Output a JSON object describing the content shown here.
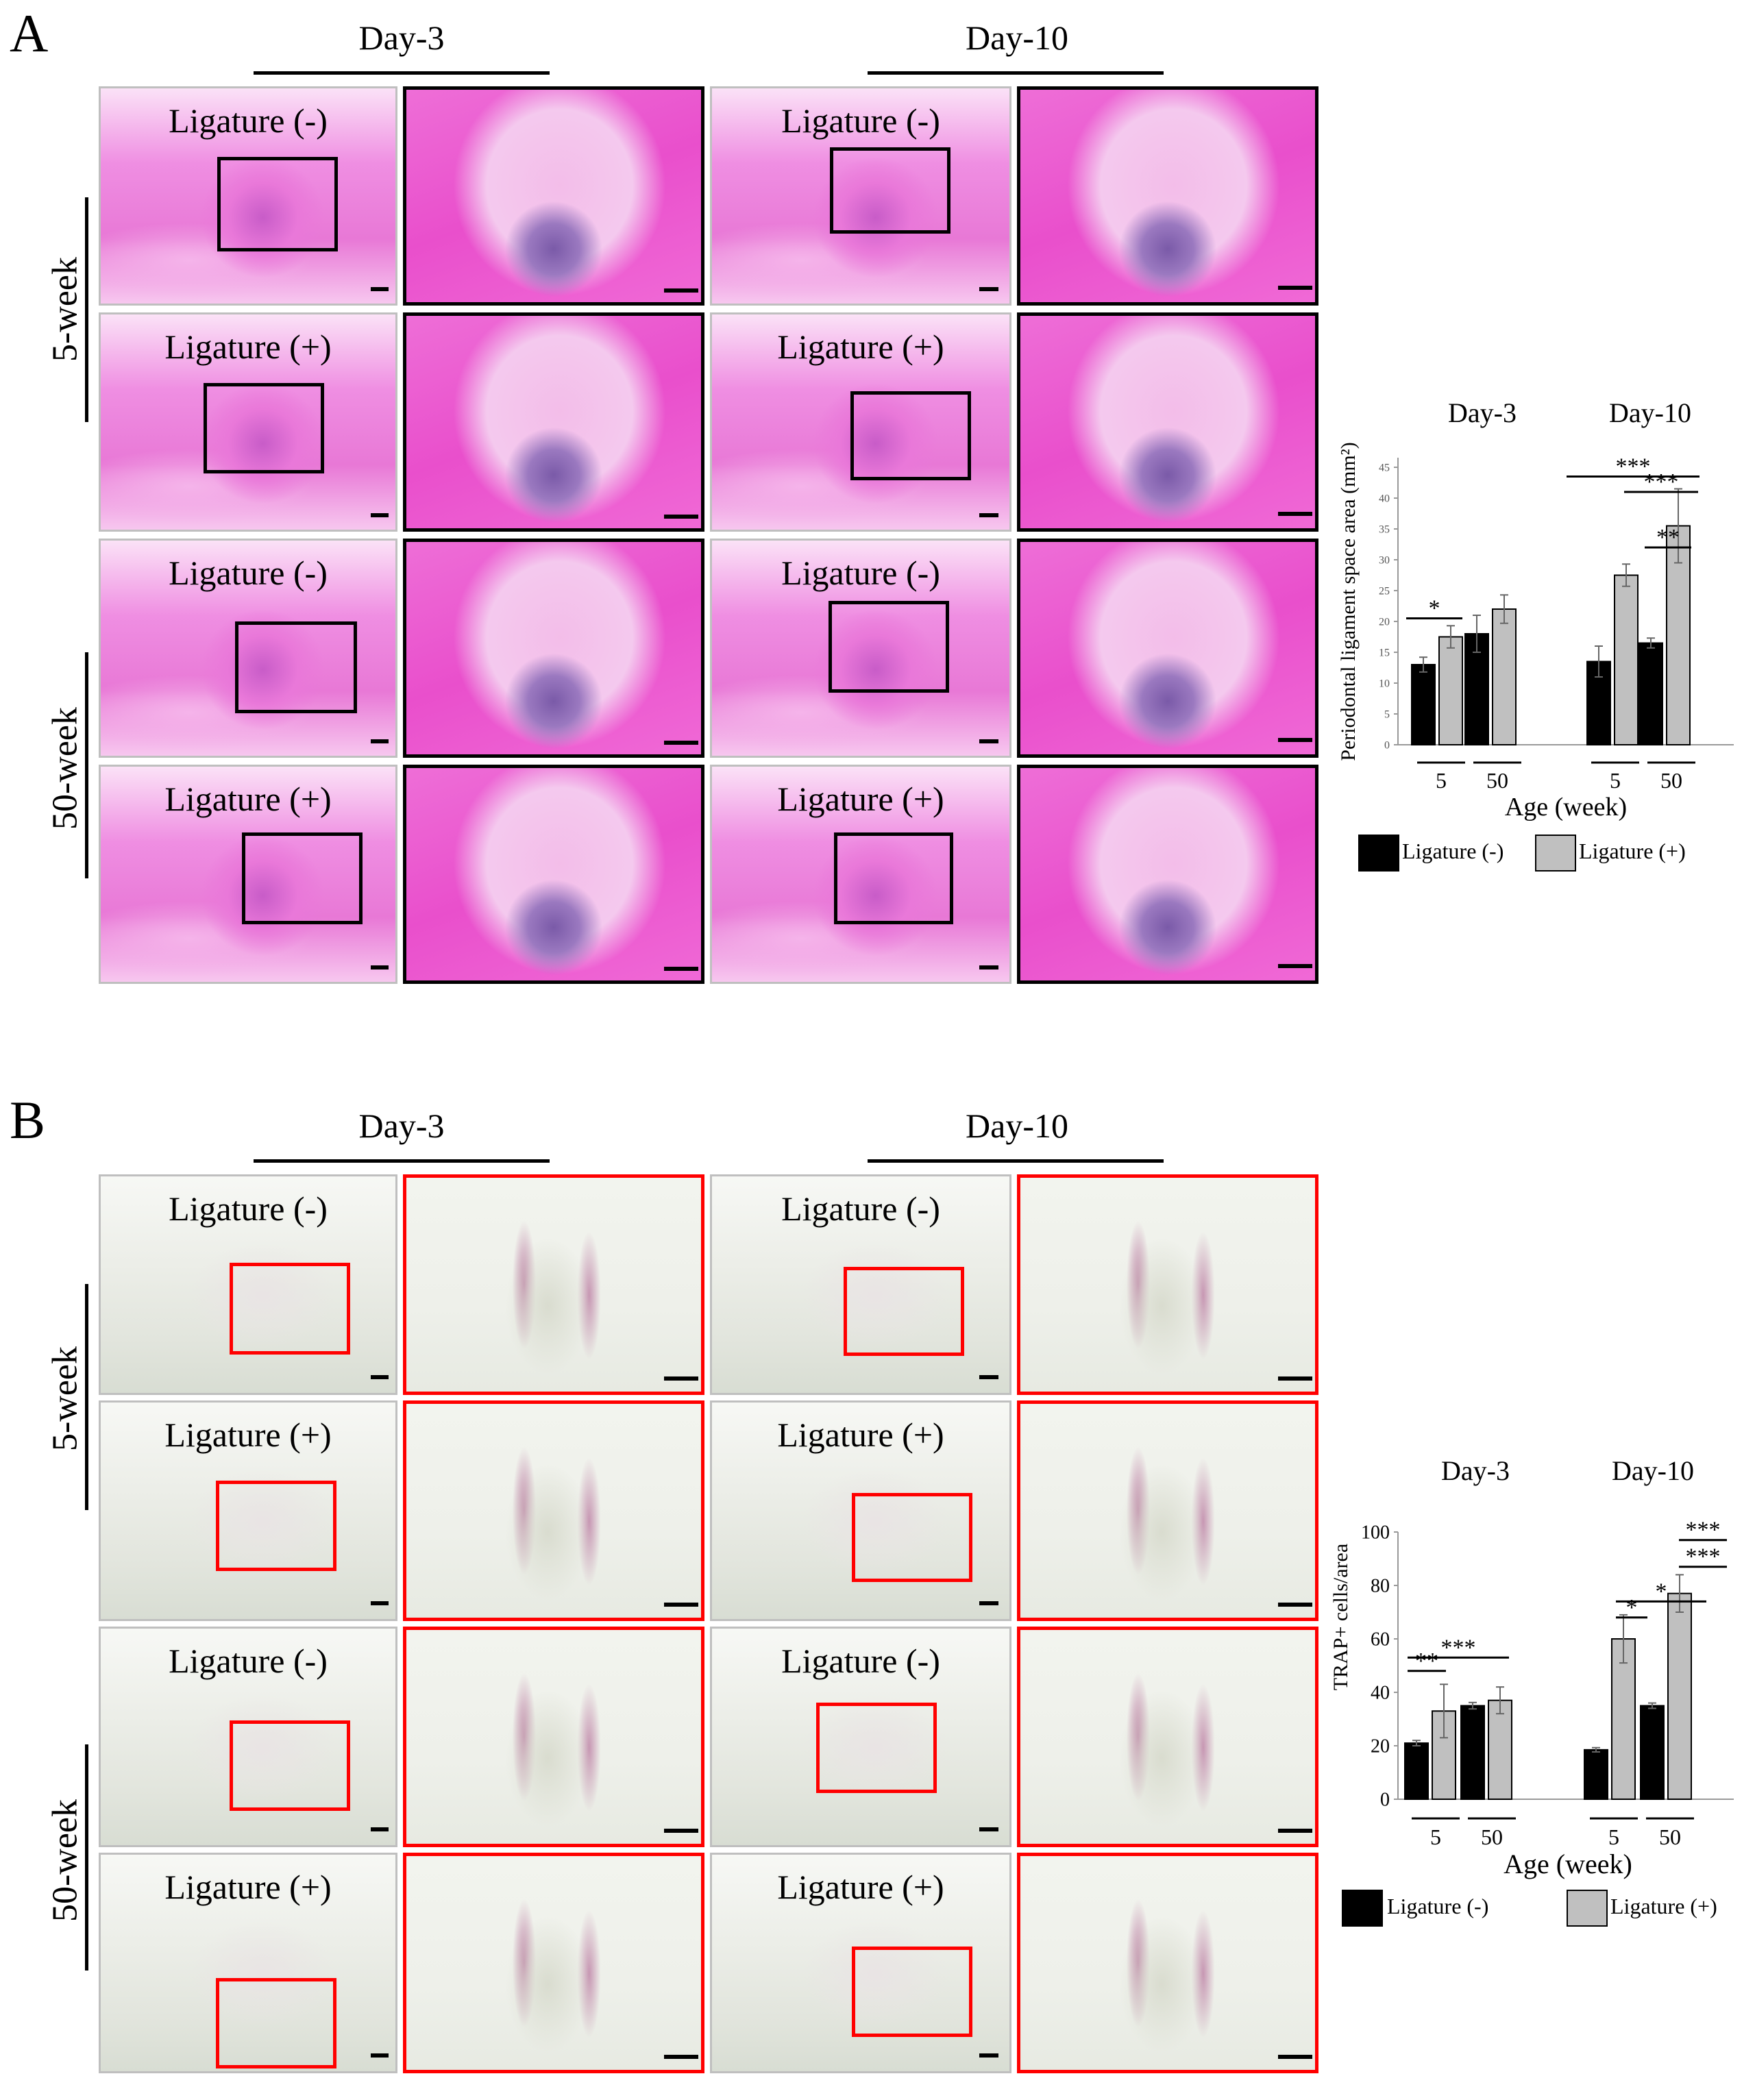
{
  "panelA": {
    "letter": "A",
    "day_headers": [
      "Day-3",
      "Day-10"
    ],
    "week_labels": [
      "5-week",
      "50-week"
    ],
    "tile_labels": [
      "Ligature (-)",
      "Ligature (+)",
      "Ligature (-)",
      "Ligature (+)"
    ]
  },
  "panelB": {
    "letter": "B",
    "day_headers": [
      "Day-3",
      "Day-10"
    ],
    "week_labels": [
      "5-week",
      "50-week"
    ],
    "tile_labels": [
      "Ligature (-)",
      "Ligature (+)",
      "Ligature (-)",
      "Ligature (+)"
    ]
  },
  "legend": {
    "neg": "Ligature (-)",
    "pos": "Ligature (+)"
  },
  "colors": {
    "neg_bar": "#000000",
    "pos_bar": "#c0c0c0",
    "zoomA_border": "#000000",
    "zoomB_border": "#ff0000",
    "he_pink": "#e94fcc"
  },
  "chart_data": [
    {
      "type": "bar",
      "title": "",
      "groups": [
        "Day-3",
        "Day-10"
      ],
      "categories": [
        "5",
        "50"
      ],
      "xlabel": "Age (week)",
      "ylabel": "Periodontal ligament space area (mm²)",
      "ylim": [
        0,
        45
      ],
      "yticks": [
        0,
        5,
        10,
        15,
        20,
        25,
        30,
        35,
        40,
        45
      ],
      "series": [
        {
          "name": "Ligature (-)",
          "values": [
            [
              13,
              18
            ],
            [
              13.5,
              16.5
            ]
          ],
          "errors": [
            [
              1.2,
              3
            ],
            [
              2.5,
              0.8
            ]
          ]
        },
        {
          "name": "Ligature (+)",
          "values": [
            [
              17.5,
              22
            ],
            [
              27.5,
              35.5
            ]
          ],
          "errors": [
            [
              1.8,
              2.3
            ],
            [
              1.8,
              6
            ]
          ]
        }
      ],
      "significance": [
        "*",
        "**",
        "***",
        "***"
      ]
    },
    {
      "type": "bar",
      "title": "",
      "groups": [
        "Day-3",
        "Day-10"
      ],
      "categories": [
        "5",
        "50"
      ],
      "xlabel": "Age (week)",
      "ylabel": "TRAP+ cells/area",
      "ylim": [
        0,
        100
      ],
      "yticks": [
        0,
        20,
        40,
        60,
        80,
        100
      ],
      "series": [
        {
          "name": "Ligature (-)",
          "values": [
            [
              21,
              35
            ],
            [
              18.5,
              35
            ]
          ],
          "errors": [
            [
              1,
              1.2
            ],
            [
              0.8,
              1
            ]
          ]
        },
        {
          "name": "Ligature (+)",
          "values": [
            [
              33,
              37
            ],
            [
              60,
              77
            ]
          ],
          "errors": [
            [
              10,
              5
            ],
            [
              9,
              7
            ]
          ]
        }
      ],
      "significance": [
        "**",
        "***",
        "*",
        "*",
        "***",
        "***"
      ]
    }
  ]
}
